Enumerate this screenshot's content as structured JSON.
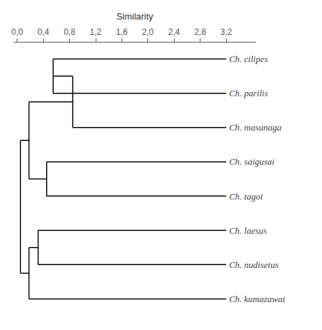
{
  "chart_data": {
    "type": "dendrogram",
    "xlabel": "Similarity",
    "categories": [
      "Ch. cilipes",
      "Ch. parilis",
      "Ch. masunaga",
      "Ch. saigusai",
      "Ch. tagoi",
      "Ch. laesus",
      "Ch. nudisetus",
      "Ch. kumazawai"
    ],
    "leaf_x": 3.2,
    "tree": {
      "x": 0.05,
      "children": [
        {
          "x": 0.18,
          "children": [
            {
              "x": 0.85,
              "children": [
                {
                  "x": 0.55,
                  "children": [
                    "Ch. cilipes",
                    "Ch. parilis"
                  ]
                },
                "Ch. masunaga"
              ]
            },
            {
              "x": 0.45,
              "children": [
                "Ch. saigusai",
                "Ch. tagoi"
              ]
            }
          ]
        },
        {
          "x": 0.18,
          "children": [
            {
              "x": 0.32,
              "children": [
                "Ch. laesus",
                "Ch. nudisetus"
              ]
            },
            "Ch. kumazawai"
          ]
        }
      ]
    },
    "xlim": [
      -0.05,
      3.65
    ],
    "xticks": [
      {
        "value": 0.0,
        "label": "0,0"
      },
      {
        "value": 0.4,
        "label": "0,4"
      },
      {
        "value": 0.8,
        "label": "0,8"
      },
      {
        "value": 1.2,
        "label": "1,2"
      },
      {
        "value": 1.6,
        "label": "1,6"
      },
      {
        "value": 2.0,
        "label": "2,0"
      },
      {
        "value": 2.4,
        "label": "2,4"
      },
      {
        "value": 2.8,
        "label": "2,8"
      },
      {
        "value": 3.2,
        "label": "3,2"
      }
    ],
    "color": "#000000",
    "grid": false
  }
}
